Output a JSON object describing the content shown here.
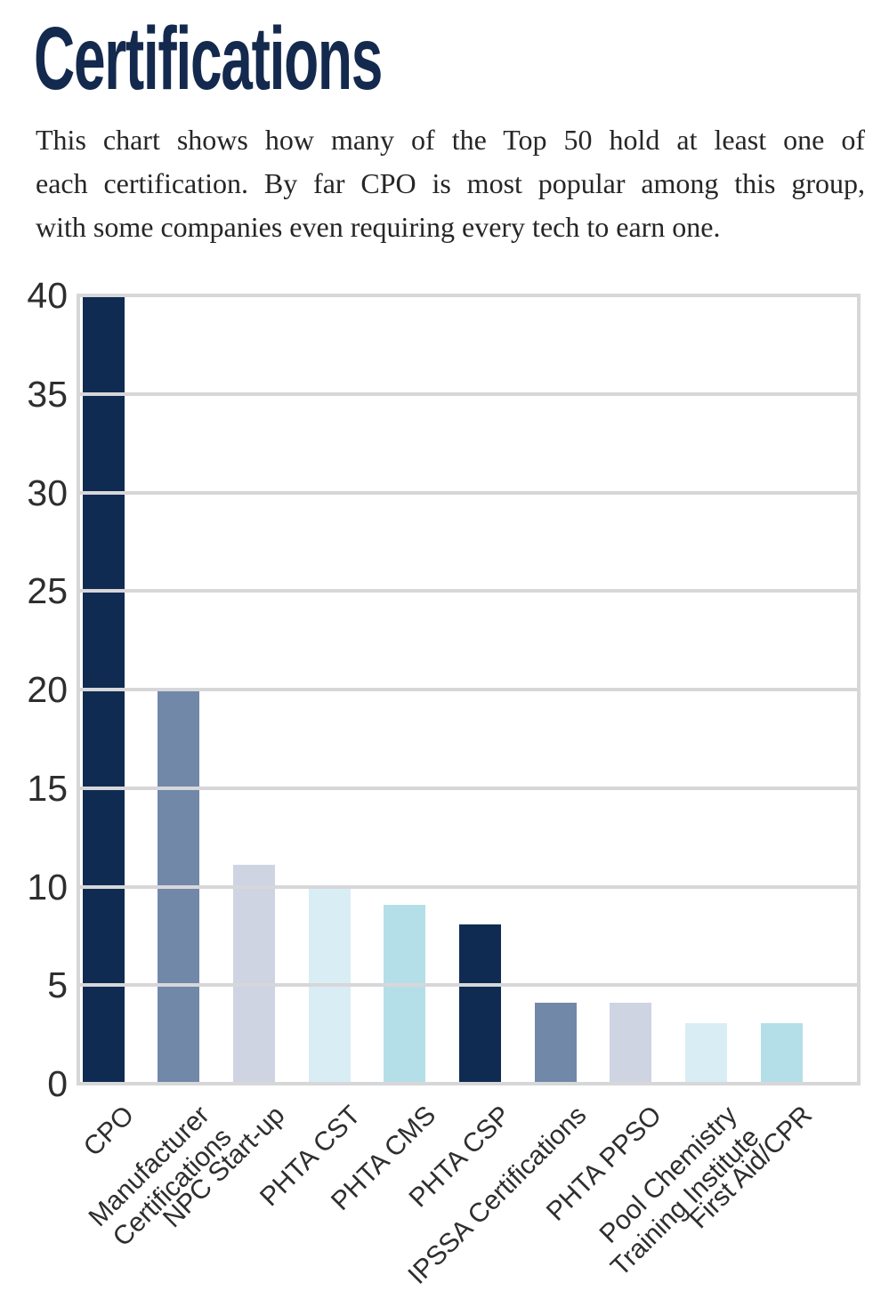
{
  "page": {
    "title": "Certifications",
    "intro_lines": [
      "This chart shows how many of the Top 50 hold at least one of",
      "each certification. By far CPO is most popular among this group,",
      "with some companies even requiring every tech to earn one."
    ]
  },
  "chart_data": {
    "type": "bar",
    "title": "Certifications",
    "categories": [
      "CPO",
      "Manufacturer Certifications",
      "NPC Start-up",
      "PHTA CST",
      "PHTA CMS",
      "PHTA CSP",
      "IPSSA Certifications",
      "PHTA PPSO",
      "Pool Chemistry Training Institute",
      "First Aid/CPR"
    ],
    "label_lines": [
      [
        "CPO"
      ],
      [
        "Manufacturer",
        "Certifications"
      ],
      [
        "NPC Start-up"
      ],
      [
        "PHTA CST"
      ],
      [
        "PHTA CMS"
      ],
      [
        "PHTA CSP"
      ],
      [
        "IPSSA Certifications"
      ],
      [
        "PHTA PPSO"
      ],
      [
        "Pool Chemistry",
        "Training Institute"
      ],
      [
        "First Aid/CPR"
      ]
    ],
    "values": [
      40,
      20,
      11,
      10,
      9,
      8,
      4,
      4,
      3,
      3
    ],
    "bar_colors": [
      "#102b51",
      "#7288a9",
      "#ced4e2",
      "#d9edf4",
      "#b4dfe8",
      "#102b51",
      "#7288a9",
      "#ced4e2",
      "#d9edf4",
      "#b4dfe8"
    ],
    "xlabel": "",
    "ylabel": "",
    "ylim": [
      0,
      40
    ],
    "yticks": [
      0,
      5,
      10,
      15,
      20,
      25,
      30,
      35,
      40
    ],
    "grid": "horizontal-over-bars",
    "legend": "none"
  },
  "colors": {
    "title_navy": "#14294e",
    "body_text": "#262626",
    "axis_text": "#2e2e2e",
    "gridline": "#d7d7d9",
    "background": "#ffffff",
    "palette_navy": "#102b51",
    "palette_grayblue": "#7288a9",
    "palette_lavender": "#ced4e2",
    "palette_paleblue": "#d9edf4",
    "palette_teal": "#b4dfe8"
  }
}
